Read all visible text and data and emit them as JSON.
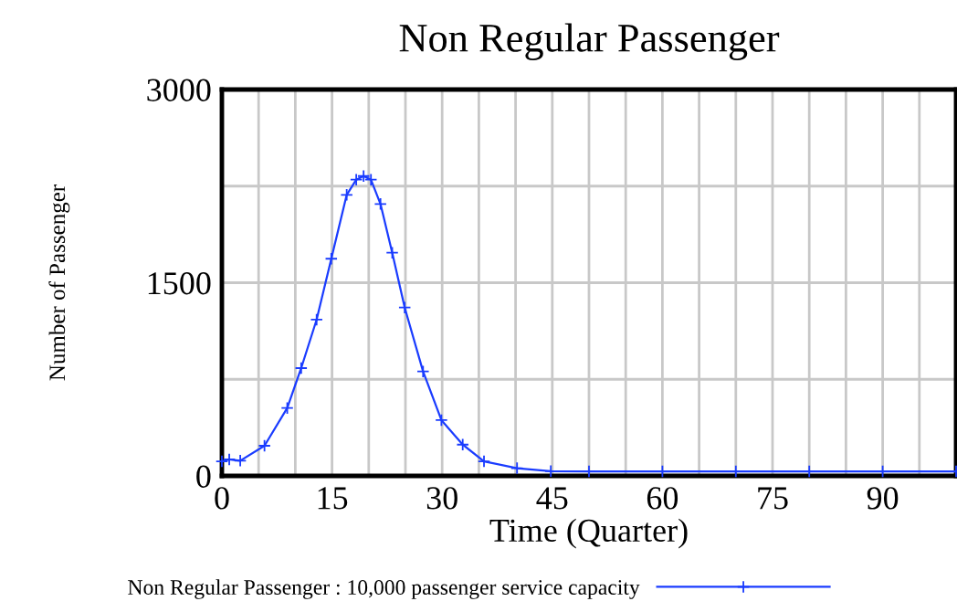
{
  "chart_data": {
    "type": "line",
    "title": "Non Regular Passenger",
    "xlabel": "Time (Quarter)",
    "ylabel": "Number of Passenger",
    "x": [
      0,
      1,
      2.5,
      5.8,
      8.9,
      10.8,
      12.9,
      14.9,
      17.0,
      18.3,
      19.3,
      20.3,
      21.6,
      23.2,
      24.9,
      27.4,
      29.9,
      32.8,
      35.7,
      40.2,
      44.8,
      50,
      60,
      70,
      80,
      90,
      100
    ],
    "series": [
      {
        "name": "Non Regular Passenger : 10,000 passenger service capacity",
        "color": "#1a3cff",
        "values": [
          113,
          128,
          118,
          234,
          527,
          837,
          1213,
          1686,
          2182,
          2300,
          2328,
          2300,
          2111,
          1733,
          1307,
          811,
          433,
          243,
          113,
          60,
          37,
          35,
          35,
          35,
          35,
          35,
          35
        ]
      }
    ],
    "xlim": [
      0,
      100
    ],
    "xticks": [
      0,
      {
        "value": 5,
        "label": null
      },
      {
        "value": 10,
        "label": null
      },
      15,
      {
        "value": 20,
        "label": null
      },
      {
        "value": 25,
        "label": null
      },
      30,
      {
        "value": 35,
        "label": null
      },
      {
        "value": 40,
        "label": null
      },
      45,
      {
        "value": 50,
        "label": null
      },
      {
        "value": 55,
        "label": null
      },
      60,
      {
        "value": 65,
        "label": null
      },
      {
        "value": 70,
        "label": null
      },
      75,
      {
        "value": 80,
        "label": null
      },
      {
        "value": 85,
        "label": null
      },
      90,
      {
        "value": 95,
        "label": null
      }
    ],
    "ylim": [
      0,
      3000
    ],
    "yticks": [
      0,
      {
        "value": 750,
        "label": null
      },
      1500,
      {
        "value": 2250,
        "label": null
      },
      3000
    ],
    "grid": true,
    "legend": "bottom",
    "marker": "cross",
    "line_style": "solid"
  }
}
